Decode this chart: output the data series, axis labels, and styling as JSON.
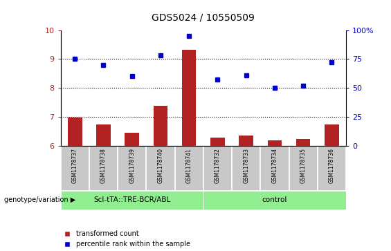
{
  "title": "GDS5024 / 10550509",
  "samples": [
    "GSM1178737",
    "GSM1178738",
    "GSM1178739",
    "GSM1178740",
    "GSM1178741",
    "GSM1178732",
    "GSM1178733",
    "GSM1178734",
    "GSM1178735",
    "GSM1178736"
  ],
  "transformed_count": [
    6.98,
    6.72,
    6.44,
    7.38,
    9.31,
    6.28,
    6.35,
    6.19,
    6.22,
    6.73
  ],
  "percentile_rank_left": [
    9.0,
    8.78,
    8.48,
    9.12,
    9.68,
    8.38,
    8.47,
    8.2,
    8.25,
    8.82
  ],
  "percentile_rank_right": [
    75,
    70,
    60,
    78,
    95,
    57,
    61,
    50,
    52,
    72
  ],
  "groups": [
    {
      "label": "Scl-tTA::TRE-BCR/ABL",
      "start": 0,
      "end": 5,
      "color": "#90EE90"
    },
    {
      "label": "control",
      "start": 5,
      "end": 10,
      "color": "#90EE90"
    }
  ],
  "bar_color": "#B22222",
  "dot_color": "#0000CD",
  "ylim_left": [
    6,
    10
  ],
  "ylim_right": [
    0,
    100
  ],
  "yticks_left": [
    6,
    7,
    8,
    9,
    10
  ],
  "yticks_right": [
    0,
    25,
    50,
    75,
    100
  ],
  "dotted_lines": [
    7,
    8,
    9
  ],
  "bar_width": 0.5,
  "legend_labels": [
    "transformed count",
    "percentile rank within the sample"
  ],
  "legend_colors": [
    "#B22222",
    "#0000CD"
  ],
  "genotype_label": "genotype/variation",
  "sample_box_color": "#C8C8C8",
  "background_color": "#ffffff"
}
